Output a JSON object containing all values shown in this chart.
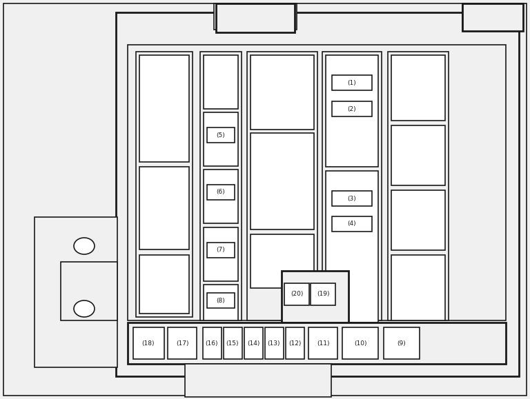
{
  "bg_color": "#f0f0f0",
  "line_color": "#1a1a1a",
  "fuse_fill": "#ffffff",
  "bg_fill": "#f0f0f0",
  "lw_thin": 1.2,
  "lw_thick": 2.0,
  "fig_w": 7.68,
  "fig_h": 5.79,
  "dpi": 100
}
